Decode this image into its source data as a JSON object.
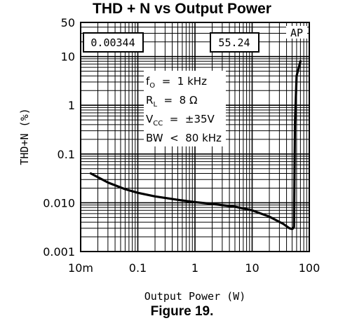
{
  "chart_data": {
    "type": "line",
    "title": "THD + N vs Output Power",
    "caption": "Figure 19.",
    "xlabel": "Output Power (W)",
    "ylabel": "THD+N (%)",
    "xscale": "log",
    "yscale": "log",
    "xlim": [
      0.01,
      100
    ],
    "ylim": [
      0.001,
      50
    ],
    "x_ticks": [
      {
        "value": 0.01,
        "label": "10m"
      },
      {
        "value": 0.1,
        "label": "0.1"
      },
      {
        "value": 1,
        "label": "1"
      },
      {
        "value": 10,
        "label": "10"
      },
      {
        "value": 100,
        "label": "100"
      }
    ],
    "y_ticks": [
      {
        "value": 0.001,
        "label": "0.001"
      },
      {
        "value": 0.01,
        "label": "0.010"
      },
      {
        "value": 0.1,
        "label": "0.1"
      },
      {
        "value": 1,
        "label": "1"
      },
      {
        "value": 10,
        "label": "10"
      },
      {
        "value": 50,
        "label": "50"
      }
    ],
    "grid": true,
    "boxes": {
      "left": "0.00344",
      "right": "55.24",
      "corner": "AP"
    },
    "conditions": {
      "fo": {
        "main": "f",
        "sub": "O",
        "rest": "  =  1 kHz"
      },
      "rl": {
        "main": "R",
        "sub": "L",
        "rest": "  =  8 Ω"
      },
      "vcc": {
        "main": "V",
        "sub": "CC",
        "rest": "  =  ±35V"
      },
      "bw": {
        "main": "BW  <  80 kHz",
        "sub": "",
        "rest": ""
      }
    },
    "series": [
      {
        "x": [
          0.015,
          0.03,
          0.06,
          0.1,
          0.2,
          0.5,
          1,
          2,
          5,
          10,
          20,
          35,
          45,
          50,
          52,
          54,
          56,
          60,
          70
        ],
        "y": [
          0.04,
          0.026,
          0.019,
          0.016,
          0.0135,
          0.0115,
          0.0103,
          0.0095,
          0.0083,
          0.007,
          0.0052,
          0.0037,
          0.003,
          0.0029,
          0.003,
          0.0032,
          0.4,
          4,
          8
        ]
      }
    ]
  }
}
